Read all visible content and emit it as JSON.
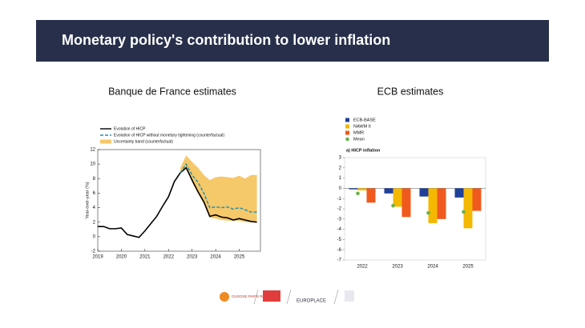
{
  "slide": {
    "title": "Monetary policy's contribution to lower inflation",
    "logos": [
      "CHOOSE PARIS REGION",
      "EUROPLACE"
    ]
  },
  "chart_data": [
    {
      "type": "line",
      "title": "Banque de France estimates",
      "ylabel": "Year-over-year (%)",
      "x": [
        2019,
        2019.25,
        2019.5,
        2019.75,
        2020,
        2020.25,
        2020.5,
        2020.75,
        2021,
        2021.25,
        2021.5,
        2021.75,
        2022,
        2022.25,
        2022.5,
        2022.75,
        2023,
        2023.25,
        2023.5,
        2023.75,
        2024,
        2024.25,
        2024.5,
        2024.75,
        2025,
        2025.25,
        2025.5,
        2025.75
      ],
      "series": [
        {
          "name": "Evolution of HICP",
          "color": "#000000",
          "dashed": false,
          "values": [
            1.4,
            1.4,
            1.1,
            1.1,
            1.2,
            0.3,
            0.1,
            -0.1,
            0.8,
            1.8,
            2.8,
            4.2,
            5.5,
            7.6,
            8.8,
            9.5,
            7.8,
            6.2,
            4.8,
            2.8,
            3.0,
            2.7,
            2.6,
            2.3,
            2.5,
            2.3,
            2.1,
            2.0
          ]
        },
        {
          "name": "Evolution of HICP without monetary tightening (counterfactual)",
          "color": "#1f8fb0",
          "dashed": true,
          "values": [
            null,
            null,
            null,
            null,
            null,
            null,
            null,
            null,
            null,
            null,
            null,
            null,
            null,
            null,
            8.8,
            10.0,
            8.5,
            7.5,
            6.0,
            4.0,
            4.1,
            4.0,
            4.1,
            3.8,
            4.0,
            3.7,
            3.4,
            3.4
          ]
        }
      ],
      "band": {
        "name": "Uncertainty band (counterfactual)",
        "color": "#f5c86a",
        "lower": [
          null,
          null,
          null,
          null,
          null,
          null,
          null,
          null,
          null,
          null,
          null,
          null,
          null,
          null,
          8.8,
          9.5,
          7.5,
          6.0,
          4.5,
          2.6,
          2.5,
          2.3,
          2.2,
          2.2,
          2.2,
          2.0,
          2.0,
          2.0
        ],
        "upper": [
          null,
          null,
          null,
          null,
          null,
          null,
          null,
          null,
          null,
          null,
          null,
          null,
          null,
          null,
          9.5,
          11.2,
          10.3,
          9.5,
          8.5,
          7.8,
          8.2,
          8.3,
          8.2,
          8.1,
          8.4,
          8.0,
          8.5,
          8.5
        ]
      },
      "xlim": [
        2019,
        2025.9
      ],
      "xticks": [
        2019,
        2020,
        2021,
        2022,
        2023,
        2024,
        2025
      ],
      "ylim": [
        -2,
        12
      ],
      "yticks": [
        -2,
        0,
        2,
        4,
        6,
        8,
        10,
        12
      ]
    },
    {
      "type": "bar",
      "title": "ECB estimates",
      "subtitle": "a) HICP inflation",
      "categories": [
        "2022",
        "2023",
        "2024",
        "2025"
      ],
      "series": [
        {
          "name": "ECB-BASE",
          "color": "#1f3f99",
          "kind": "bar",
          "values": [
            -0.1,
            -0.5,
            -0.8,
            -0.9
          ]
        },
        {
          "name": "NAWM II",
          "color": "#f5b800",
          "kind": "bar",
          "values": [
            -0.2,
            -1.8,
            -3.4,
            -3.9
          ]
        },
        {
          "name": "MMR",
          "color": "#f05a1e",
          "kind": "bar",
          "values": [
            -1.4,
            -2.8,
            -3.0,
            -2.2
          ]
        },
        {
          "name": "Mean",
          "color": "#6ab04c",
          "kind": "point",
          "values": [
            -0.5,
            -1.7,
            -2.4,
            -2.3
          ]
        }
      ],
      "ylim": [
        -7,
        3
      ],
      "yticks": [
        -7,
        -6,
        -5,
        -4,
        -3,
        -2,
        -1,
        0,
        1,
        2,
        3
      ]
    }
  ]
}
